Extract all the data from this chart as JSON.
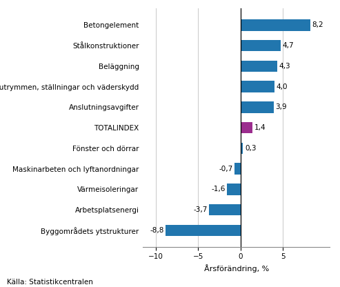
{
  "categories": [
    "Byggområdets ytstrukturer",
    "Arbetsplatsenergi",
    "Värmeisoleringar",
    "Maskinarbeten och lyftanordningar",
    "Fönster och dörrar",
    "TOTALINDEX",
    "Anslutningsavgifter",
    "Arbetsplatsutrymmen, ställningar och väderskydd",
    "Beläggning",
    "Stålkonstruktioner",
    "Betongelement"
  ],
  "values": [
    -8.8,
    -3.7,
    -1.6,
    -0.7,
    0.3,
    1.4,
    3.9,
    4.0,
    4.3,
    4.7,
    8.2
  ],
  "bar_colors": [
    "#2176ae",
    "#2176ae",
    "#2176ae",
    "#2176ae",
    "#2176ae",
    "#9b2d8e",
    "#2176ae",
    "#2176ae",
    "#2176ae",
    "#2176ae",
    "#2176ae"
  ],
  "xlabel": "Årsförändring, %",
  "xlim": [
    -11.5,
    10.5
  ],
  "xticks": [
    -10,
    -5,
    0,
    5
  ],
  "source": "Källa: Statistikcentralen",
  "value_fontsize": 7.5,
  "label_fontsize": 7.5,
  "xlabel_fontsize": 8,
  "bar_height": 0.55,
  "background_color": "#ffffff",
  "grid_color": "#c8c8c8",
  "source_fontsize": 7.5
}
